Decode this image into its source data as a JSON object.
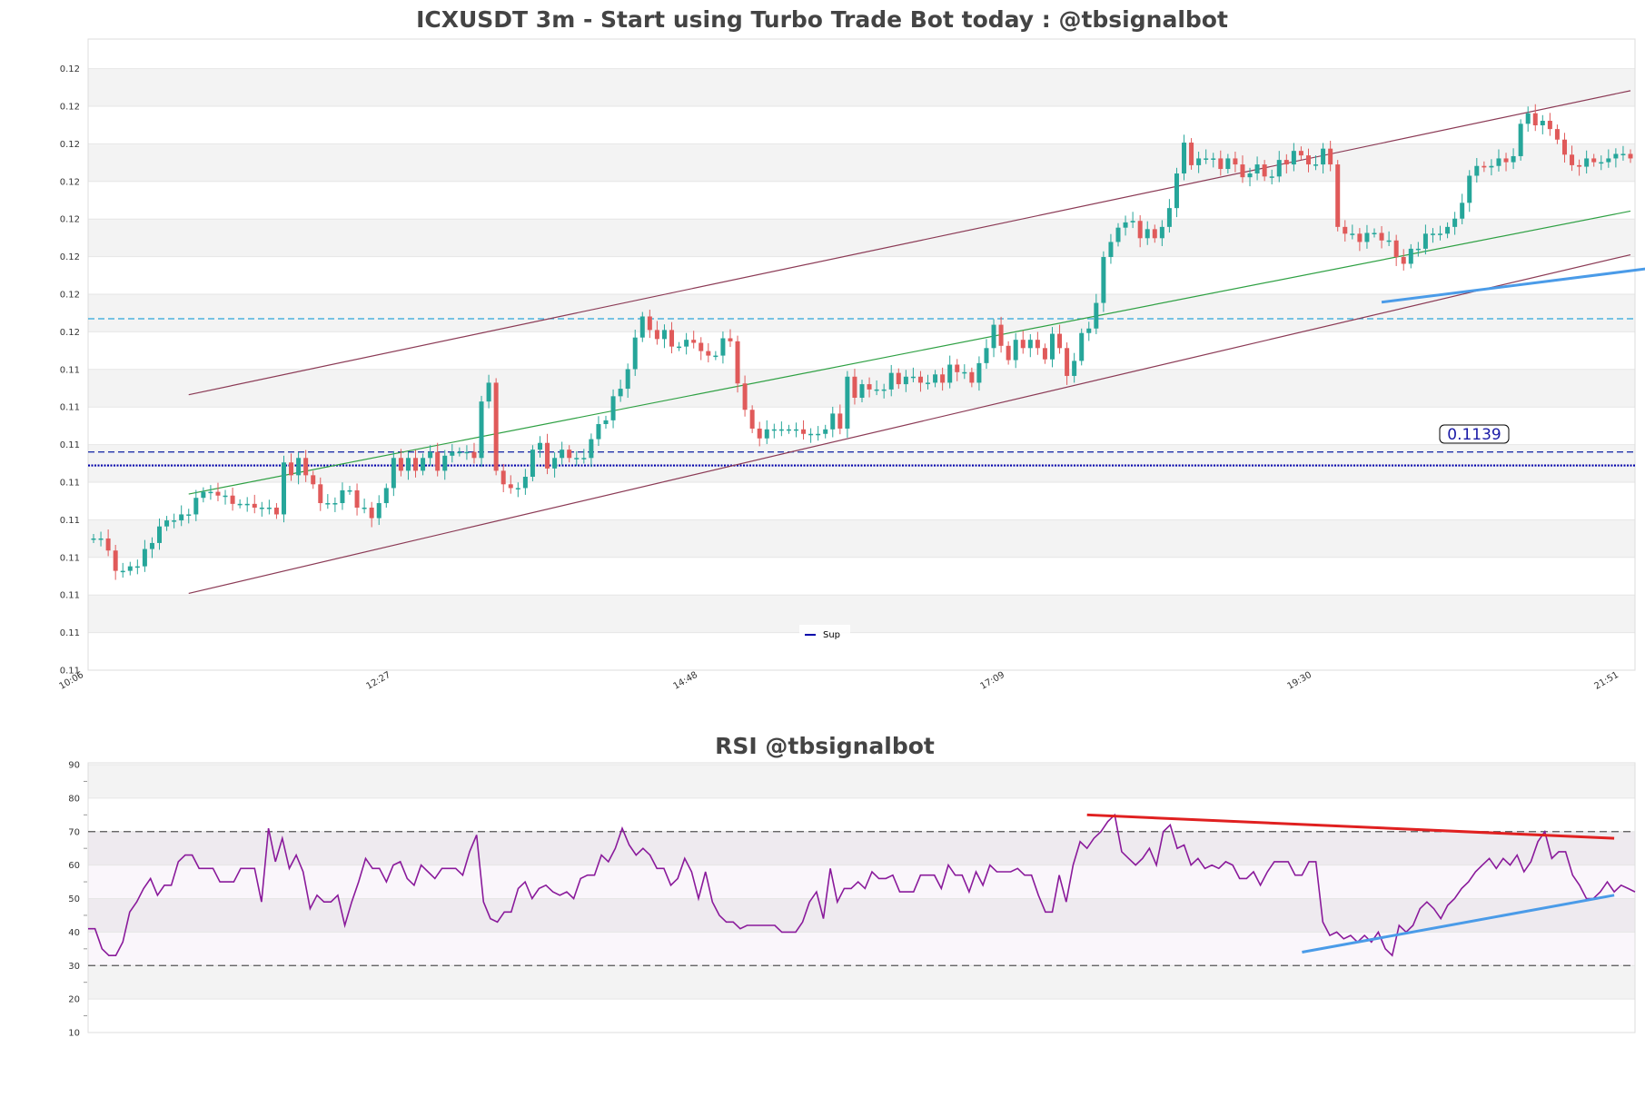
{
  "colors": {
    "up": "#26a69a",
    "down": "#e05a5a",
    "channel": "#8b3a55",
    "midline": "#2ea043",
    "support_dash": "#2233aa",
    "support_dotted": "#0000aa",
    "cyan_dash": "#2aa5d9",
    "trend_blue": "#4a9be8",
    "rsi_line": "#8a1a9b",
    "rsi_trend_red": "#e02020",
    "rsi_trend_blue": "#4a9be8",
    "band_gray": "#f3f3f3",
    "label_text": "#1a1aa6"
  },
  "chart_data": [
    {
      "type": "candlestick",
      "title": "ICXUSDT 3m - Start using Turbo Trade Bot today : @tbsignalbot",
      "xlabel": "",
      "ylabel": "",
      "x_tick_labels": [
        "10:06",
        "12:27",
        "14:48",
        "17:09",
        "19:30",
        "21:51"
      ],
      "y_tick_labels": [
        "0.11",
        "0.11",
        "0.11",
        "0.11",
        "0.11",
        "0.11",
        "0.11",
        "0.11",
        "0.11",
        "0.12",
        "0.12",
        "0.12",
        "0.12",
        "0.12",
        "0.12",
        "0.12",
        "0.12"
      ],
      "ylim": [
        0.111,
        0.119
      ],
      "grid": "horizontal bands",
      "legend": {
        "position": "bottom-center",
        "entries": [
          "Sup"
        ]
      },
      "price_label": "0.1139",
      "levels": {
        "support_dashed": 0.1139,
        "support_dotted": 0.11372,
        "cyan_dashed": 0.11567
      },
      "channel": {
        "x_start_index": 13,
        "x_end_index": 210,
        "upper": [
          0.11466,
          0.1187
        ],
        "mid": [
          0.11334,
          0.1171
        ],
        "lower": [
          0.11202,
          0.11652
        ]
      },
      "support_trendline": {
        "x_start_index": 176,
        "x_end_index": 220,
        "values": [
          0.11589,
          0.11643
        ]
      },
      "closes": [
        0.11275,
        0.11275,
        0.11259,
        0.11232,
        0.11232,
        0.11238,
        0.11238,
        0.11261,
        0.11269,
        0.11291,
        0.11299,
        0.11299,
        0.11307,
        0.11307,
        0.11329,
        0.11337,
        0.11337,
        0.11332,
        0.11332,
        0.11321,
        0.11321,
        0.11321,
        0.11316,
        0.11316,
        0.11316,
        0.11307,
        0.11376,
        0.11359,
        0.11382,
        0.11359,
        0.11347,
        0.11322,
        0.11322,
        0.11322,
        0.11339,
        0.11339,
        0.11316,
        0.11316,
        0.11302,
        0.11322,
        0.11342,
        0.11382,
        0.11365,
        0.11382,
        0.11365,
        0.11382,
        0.1139,
        0.11365,
        0.11385,
        0.1139,
        0.1139,
        0.1139,
        0.11382,
        0.11457,
        0.11482,
        0.11365,
        0.11347,
        0.11342,
        0.11342,
        0.11357,
        0.11393,
        0.11402,
        0.11368,
        0.11382,
        0.11393,
        0.11382,
        0.11382,
        0.11382,
        0.11407,
        0.11427,
        0.11432,
        0.11464,
        0.11474,
        0.115,
        0.11542,
        0.1157,
        0.11552,
        0.1154,
        0.11552,
        0.1153,
        0.1153,
        0.11539,
        0.11535,
        0.11524,
        0.11518,
        0.11518,
        0.11541,
        0.11537,
        0.11481,
        0.11446,
        0.11421,
        0.11408,
        0.1142,
        0.1142,
        0.1142,
        0.1142,
        0.1142,
        0.11414,
        0.11414,
        0.11414,
        0.1142,
        0.11441,
        0.11421,
        0.1149,
        0.11462,
        0.1148,
        0.11473,
        0.11473,
        0.11473,
        0.11495,
        0.1148,
        0.1149,
        0.1149,
        0.11482,
        0.11482,
        0.11493,
        0.11482,
        0.11506,
        0.11496,
        0.11496,
        0.11482,
        0.11508,
        0.11528,
        0.11559,
        0.11531,
        0.11512,
        0.11539,
        0.11528,
        0.11539,
        0.11528,
        0.11513,
        0.11547,
        0.11528,
        0.11491,
        0.11511,
        0.11548,
        0.11554,
        0.11588,
        0.11649,
        0.11669,
        0.11688,
        0.11695,
        0.11697,
        0.11674,
        0.11686,
        0.11674,
        0.11689,
        0.11714,
        0.1176,
        0.11801,
        0.11771,
        0.1178,
        0.1178,
        0.1178,
        0.11766,
        0.1178,
        0.11772,
        0.11755,
        0.1176,
        0.11772,
        0.11756,
        0.11756,
        0.11778,
        0.11772,
        0.1179,
        0.11784,
        0.11772,
        0.11772,
        0.11793,
        0.11772,
        0.11689,
        0.1168,
        0.1168,
        0.11669,
        0.11681,
        0.11681,
        0.11671,
        0.11671,
        0.11649,
        0.1164,
        0.1166,
        0.1166,
        0.1168,
        0.1168,
        0.1168,
        0.11689,
        0.117,
        0.11721,
        0.11757,
        0.1177,
        0.11768,
        0.1177,
        0.1178,
        0.11775,
        0.11783,
        0.11826,
        0.1184,
        0.11824,
        0.1183,
        0.11819,
        0.11805,
        0.11785,
        0.11771,
        0.11769,
        0.1178,
        0.11775,
        0.11775,
        0.1178,
        0.11786,
        0.11786,
        0.1178
      ]
    },
    {
      "type": "line",
      "title": "RSI @tbsignalbot",
      "xlabel": "",
      "ylabel": "",
      "y_tick_labels": [
        "10",
        "20",
        "30",
        "40",
        "50",
        "60",
        "70",
        "80",
        "90"
      ],
      "ylim": [
        10,
        90
      ],
      "grid": "horizontal bands",
      "reference_lines": [
        30,
        70
      ],
      "values": [
        41,
        41,
        35,
        33,
        33,
        37,
        46,
        49,
        53,
        56,
        51,
        54,
        54,
        61,
        63,
        63,
        59,
        59,
        59,
        55,
        55,
        55,
        59,
        59,
        59,
        49,
        71,
        61,
        68,
        59,
        63,
        58,
        47,
        51,
        49,
        49,
        51,
        42,
        49,
        55,
        62,
        59,
        59,
        55,
        60,
        61,
        56,
        54,
        60,
        58,
        56,
        59,
        59,
        59,
        57,
        64,
        69,
        49,
        44,
        43,
        46,
        46,
        53,
        55,
        50,
        53,
        54,
        52,
        51,
        52,
        50,
        56,
        57,
        57,
        63,
        61,
        65,
        71,
        66,
        63,
        65,
        63,
        59,
        59,
        54,
        56,
        62,
        58,
        50,
        58,
        49,
        45,
        43,
        43,
        41,
        42,
        42,
        42,
        42,
        42,
        40,
        40,
        40,
        43,
        49,
        52,
        44,
        59,
        49,
        53,
        53,
        55,
        53,
        58,
        56,
        56,
        57,
        52,
        52,
        52,
        57,
        57,
        57,
        53,
        60,
        57,
        57,
        52,
        58,
        54,
        60,
        58,
        58,
        58,
        59,
        57,
        57,
        51,
        46,
        46,
        57,
        49,
        60,
        67,
        65,
        68,
        70,
        73,
        75,
        64,
        62,
        60,
        62,
        65,
        60,
        70,
        72,
        65,
        66,
        60,
        62,
        59,
        60,
        59,
        61,
        60,
        56,
        56,
        58,
        54,
        58,
        61,
        61,
        61,
        57,
        57,
        61,
        61,
        43,
        39,
        40,
        38,
        39,
        37,
        39,
        37,
        40,
        35,
        33,
        42,
        40,
        42,
        47,
        49,
        47,
        44,
        48,
        50,
        53,
        55,
        58,
        60,
        62,
        59,
        62,
        60,
        63,
        58,
        61,
        67,
        70,
        62,
        64,
        64,
        57,
        54,
        50,
        50,
        52,
        55,
        52,
        54,
        53,
        52
      ],
      "trendlines": [
        {
          "color": "red",
          "x_start_index": 144,
          "x_end_index": 220,
          "values": [
            75,
            68
          ]
        },
        {
          "color": "blue",
          "x_start_index": 175,
          "x_end_index": 220,
          "values": [
            34,
            51
          ]
        }
      ]
    }
  ]
}
